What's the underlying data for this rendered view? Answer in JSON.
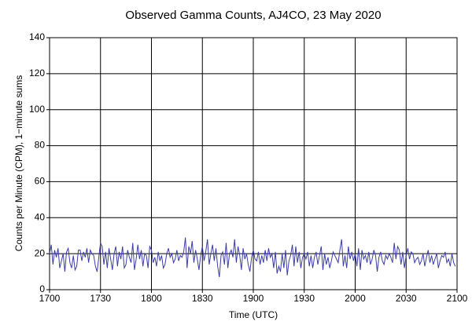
{
  "chart_data": {
    "type": "line",
    "title": "Observed Gamma Counts, AJ4CO, 23 May 2020",
    "x_label": "Time (UTC)",
    "y_label": "Counts per Minute (CPM), 1−minute sums",
    "xlim": [
      0,
      240
    ],
    "xticks": [
      {
        "value": 0,
        "label": "1700"
      },
      {
        "value": 30,
        "label": "1730"
      },
      {
        "value": 60,
        "label": "1800"
      },
      {
        "value": 90,
        "label": "1830"
      },
      {
        "value": 120,
        "label": "1900"
      },
      {
        "value": 150,
        "label": "1930"
      },
      {
        "value": 180,
        "label": "2000"
      },
      {
        "value": 210,
        "label": "2030"
      },
      {
        "value": 240,
        "label": "2100"
      }
    ],
    "ylim": [
      0,
      140
    ],
    "yticks": [
      0,
      20,
      40,
      60,
      80,
      100,
      120,
      140
    ],
    "grid": true,
    "color": "#3c3ca8",
    "values": [
      20,
      25,
      14,
      22,
      18,
      23,
      12,
      16,
      20,
      10,
      21,
      23,
      15,
      12,
      19,
      11,
      13,
      22,
      22,
      16,
      21,
      18,
      23,
      15,
      22,
      20,
      19,
      13,
      10,
      18,
      26,
      24,
      14,
      21,
      12,
      23,
      17,
      11,
      20,
      24,
      13,
      21,
      17,
      24,
      12,
      14,
      22,
      18,
      15,
      26,
      11,
      17,
      25,
      17,
      22,
      13,
      20,
      19,
      12,
      24,
      22,
      15,
      18,
      13,
      21,
      16,
      19,
      12,
      14,
      20,
      23,
      18,
      20,
      15,
      17,
      22,
      16,
      19,
      18,
      21,
      29,
      12,
      24,
      20,
      27,
      15,
      22,
      17,
      11,
      19,
      24,
      16,
      21,
      28,
      14,
      20,
      25,
      16,
      23,
      13,
      7,
      19,
      21,
      14,
      26,
      12,
      20,
      22,
      18,
      28,
      15,
      24,
      19,
      11,
      23,
      17,
      20,
      14,
      10,
      18,
      22,
      17,
      16,
      21,
      14,
      19,
      15,
      22,
      16,
      23,
      18,
      20,
      12,
      21,
      9,
      13,
      10,
      20,
      12,
      22,
      8,
      16,
      19,
      25,
      13,
      24,
      15,
      21,
      12,
      18,
      20,
      17,
      21,
      13,
      19,
      12,
      18,
      21,
      14,
      19,
      24,
      11,
      20,
      14,
      18,
      12,
      16,
      21,
      19,
      17,
      15,
      22,
      28,
      13,
      19,
      12,
      24,
      17,
      21,
      16,
      20,
      13,
      23,
      11,
      22,
      17,
      19,
      15,
      21,
      14,
      17,
      22,
      19,
      10,
      18,
      21,
      16,
      14,
      19,
      17,
      20,
      18,
      15,
      26,
      17,
      24,
      22,
      14,
      21,
      12,
      19,
      23,
      17,
      21,
      20,
      15,
      17,
      18,
      14,
      16,
      20,
      13,
      18,
      22,
      15,
      19,
      14,
      17,
      20,
      12,
      16,
      19,
      18,
      21,
      15,
      17,
      13,
      20,
      15,
      13
    ]
  }
}
